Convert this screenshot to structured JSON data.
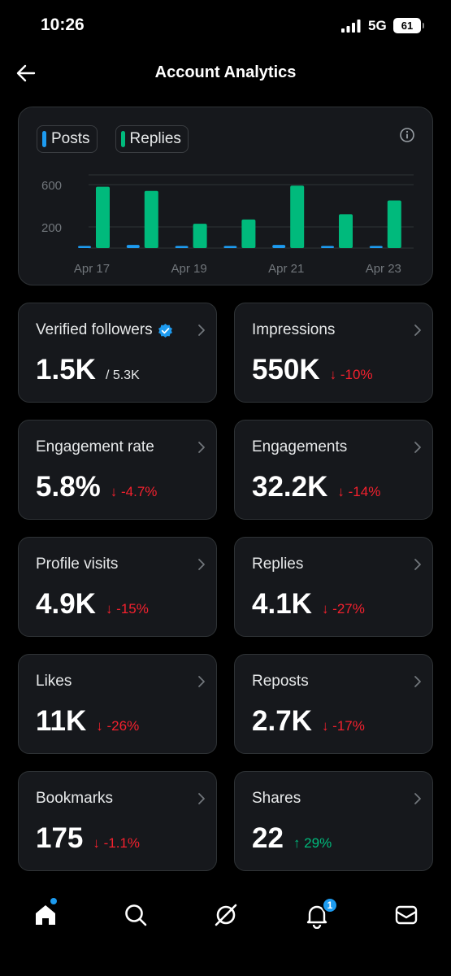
{
  "status_bar": {
    "time": "10:26",
    "network": "5G",
    "battery": "61"
  },
  "header": {
    "title": "Account Analytics"
  },
  "chart": {
    "legend": [
      {
        "label": "Posts",
        "color": "#1d9bf0"
      },
      {
        "label": "Replies",
        "color": "#00ba7c"
      }
    ]
  },
  "chart_data": {
    "type": "bar",
    "categories": [
      "Apr 17",
      "Apr 18",
      "Apr 19",
      "Apr 20",
      "Apr 21",
      "Apr 22",
      "Apr 23"
    ],
    "x_tick_labels": [
      "Apr 17",
      "Apr 19",
      "Apr 21",
      "Apr 23"
    ],
    "series": [
      {
        "name": "Posts",
        "color": "#1d9bf0",
        "values": [
          20,
          30,
          20,
          20,
          30,
          20,
          20
        ]
      },
      {
        "name": "Replies",
        "color": "#00ba7c",
        "values": [
          580,
          540,
          230,
          270,
          590,
          320,
          450
        ]
      }
    ],
    "y_ticks": [
      200,
      600
    ],
    "ylim": [
      0,
      700
    ],
    "grid": true,
    "legend": "top-left"
  },
  "metrics": [
    {
      "label": "Verified followers",
      "value": "1.5K",
      "sub": "/ 5.3K",
      "delta": "",
      "trend": "none",
      "verified": true
    },
    {
      "label": "Impressions",
      "value": "550K",
      "delta": "↓ -10%",
      "trend": "down"
    },
    {
      "label": "Engagement rate",
      "value": "5.8%",
      "delta": "↓ -4.7%",
      "trend": "down"
    },
    {
      "label": "Engagements",
      "value": "32.2K",
      "delta": "↓ -14%",
      "trend": "down"
    },
    {
      "label": "Profile visits",
      "value": "4.9K",
      "delta": "↓ -15%",
      "trend": "down"
    },
    {
      "label": "Replies",
      "value": "4.1K",
      "delta": "↓ -27%",
      "trend": "down"
    },
    {
      "label": "Likes",
      "value": "11K",
      "delta": "↓ -26%",
      "trend": "down"
    },
    {
      "label": "Reposts",
      "value": "2.7K",
      "delta": "↓ -17%",
      "trend": "down"
    },
    {
      "label": "Bookmarks",
      "value": "175",
      "delta": "↓ -1.1%",
      "trend": "down"
    },
    {
      "label": "Shares",
      "value": "22",
      "delta": "↑ 29%",
      "trend": "up"
    }
  ],
  "nav": {
    "items": [
      "home-icon",
      "search-icon",
      "grok-icon",
      "notifications-icon",
      "messages-icon"
    ],
    "notification_count": "1"
  }
}
